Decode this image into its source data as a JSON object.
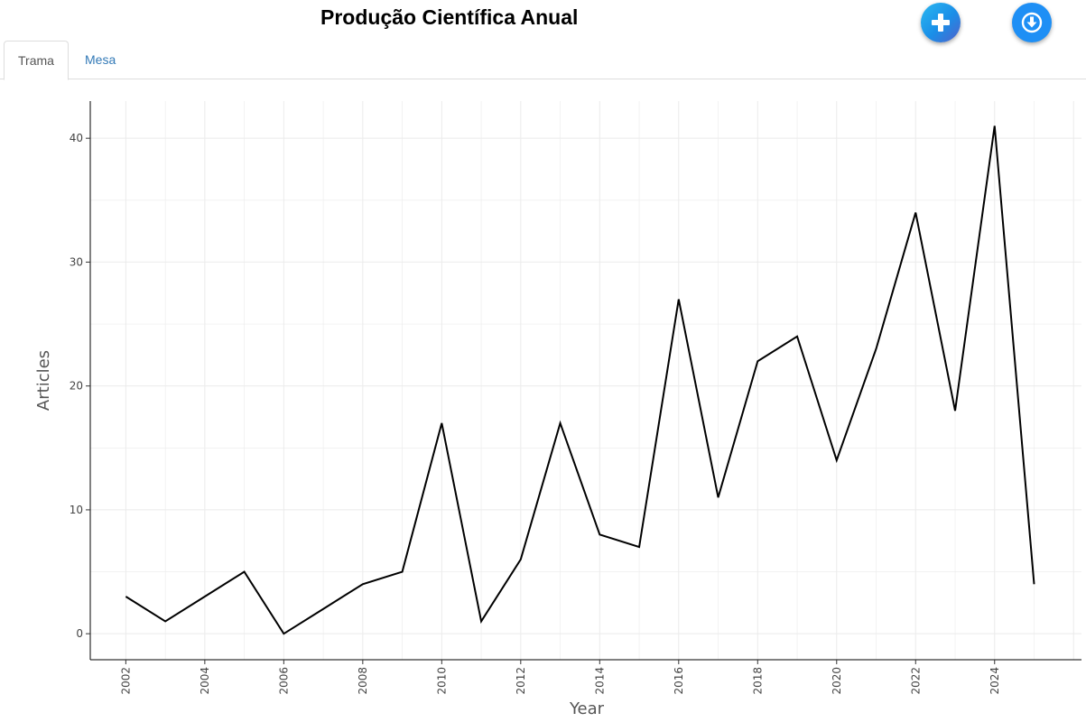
{
  "header": {
    "title": "Produção Científica Anual",
    "add_icon": "plus-icon",
    "download_icon": "download-circle-icon"
  },
  "tabs": [
    {
      "label": "Trama",
      "active": true
    },
    {
      "label": "Mesa",
      "active": false
    }
  ],
  "colors": {
    "line": "#000000",
    "grid": "#ebebeb",
    "axis": "#000000",
    "tab_link": "#337ab7",
    "fab_download": "#1e8ff5"
  },
  "chart_data": {
    "type": "line",
    "title": "",
    "xlabel": "Year",
    "ylabel": "Articles",
    "x": [
      2002,
      2003,
      2004,
      2005,
      2006,
      2007,
      2008,
      2009,
      2010,
      2011,
      2012,
      2013,
      2014,
      2015,
      2016,
      2017,
      2018,
      2019,
      2020,
      2021,
      2022,
      2023,
      2024,
      2025
    ],
    "series": [
      {
        "values": [
          3,
          1,
          3,
          5,
          0,
          2,
          4,
          5,
          17,
          1,
          6,
          17,
          8,
          7,
          27,
          11,
          22,
          24,
          14,
          23,
          34,
          18,
          41,
          4
        ]
      }
    ],
    "xticks": [
      "2002",
      "2004",
      "2006",
      "2008",
      "2010",
      "2012",
      "2014",
      "2016",
      "2018",
      "2020",
      "2022",
      "2024"
    ],
    "yticks": [
      "0",
      "10",
      "20",
      "30",
      "40"
    ],
    "xlim": [
      2001.1,
      2026.2
    ],
    "ylim": [
      -2.1,
      43
    ],
    "grid": true,
    "legend": false
  }
}
